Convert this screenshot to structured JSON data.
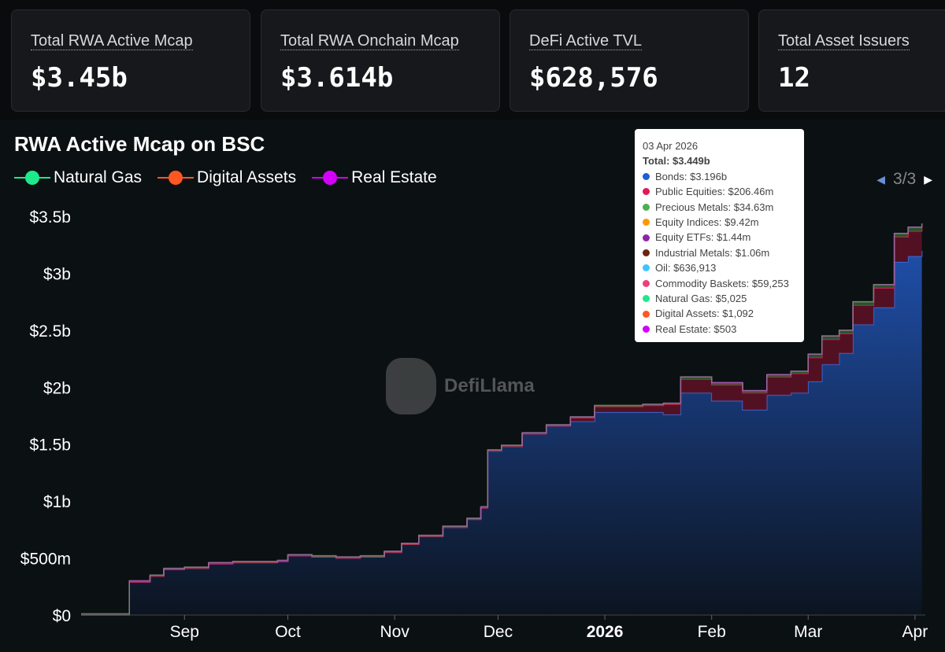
{
  "cards": [
    {
      "label": "Total RWA Active Mcap",
      "value": "$3.45b"
    },
    {
      "label": "Total RWA Onchain Mcap",
      "value": "$3.614b"
    },
    {
      "label": "DeFi Active TVL",
      "value": "$628,576"
    },
    {
      "label": "Total Asset Issuers",
      "value": "12"
    }
  ],
  "watermark": "DefiLlama",
  "legend_pager": "3/3",
  "tooltip": {
    "date": "03 Apr 2026",
    "total": "Total: $3.449b",
    "items": [
      {
        "text": "Bonds: $3.196b",
        "color": "#1f5fd1"
      },
      {
        "text": "Public Equities: $206.46m",
        "color": "#e0195b"
      },
      {
        "text": "Precious Metals: $34.63m",
        "color": "#4caf50"
      },
      {
        "text": "Equity Indices: $9.42m",
        "color": "#ff9800"
      },
      {
        "text": "Equity ETFs: $1.44m",
        "color": "#8e24aa"
      },
      {
        "text": "Industrial Metals: $1.06m",
        "color": "#6d2414"
      },
      {
        "text": "Oil: $636,913",
        "color": "#40c4ff"
      },
      {
        "text": "Commodity Baskets: $59,253",
        "color": "#ec407a"
      },
      {
        "text": "Natural Gas: $5,025",
        "color": "#1de98b"
      },
      {
        "text": "Digital Assets: $1,092",
        "color": "#ff5722"
      },
      {
        "text": "Real Estate: $503",
        "color": "#d500f9"
      }
    ]
  },
  "chart_data": {
    "type": "area",
    "title": "RWA Active Mcap on BSC",
    "legend": [
      {
        "name": "Natural Gas",
        "color": "#1de98b"
      },
      {
        "name": "Digital Assets",
        "color": "#ff5722"
      },
      {
        "name": "Real Estate",
        "color": "#d500f9"
      }
    ],
    "legend_placement": "top-left",
    "y_ticks": [
      "$0",
      "$500m",
      "$1b",
      "$1.5b",
      "$2b",
      "$2.5b",
      "$3b",
      "$3.5b"
    ],
    "ylim": [
      0,
      3500000000.0
    ],
    "x_ticks": [
      {
        "label": "Sep",
        "date": "2025-09-01"
      },
      {
        "label": "Oct",
        "date": "2025-10-01"
      },
      {
        "label": "Nov",
        "date": "2025-11-01"
      },
      {
        "label": "Dec",
        "date": "2025-12-01"
      },
      {
        "label": "2026",
        "date": "2026-01-01",
        "bold": true
      },
      {
        "label": "Feb",
        "date": "2026-02-01"
      },
      {
        "label": "Mar",
        "date": "2026-03-01"
      },
      {
        "label": "Apr",
        "date": "2026-04-01"
      }
    ],
    "xlim": [
      "2025-08-02",
      "2026-04-04"
    ],
    "grid": false,
    "x": [
      "2025-08-02",
      "2025-08-15",
      "2025-08-16",
      "2025-08-22",
      "2025-08-26",
      "2025-09-01",
      "2025-09-08",
      "2025-09-15",
      "2025-09-28",
      "2025-10-01",
      "2025-10-08",
      "2025-10-15",
      "2025-10-22",
      "2025-10-29",
      "2025-11-03",
      "2025-11-08",
      "2025-11-15",
      "2025-11-22",
      "2025-11-26",
      "2025-11-28",
      "2025-12-02",
      "2025-12-08",
      "2025-12-15",
      "2025-12-22",
      "2025-12-29",
      "2026-01-05",
      "2026-01-12",
      "2026-01-18",
      "2026-01-23",
      "2026-02-01",
      "2026-02-10",
      "2026-02-17",
      "2026-02-24",
      "2026-03-01",
      "2026-03-05",
      "2026-03-10",
      "2026-03-14",
      "2026-03-20",
      "2026-03-26",
      "2026-03-30",
      "2026-04-03"
    ],
    "series": [
      {
        "name": "Bonds",
        "color": "#1f5fd1",
        "values": [
          0,
          0,
          290000000.0,
          340000000.0,
          400000000.0,
          410000000.0,
          450000000.0,
          460000000.0,
          470000000.0,
          520000000.0,
          510000000.0,
          500000000.0,
          510000000.0,
          550000000.0,
          620000000.0,
          690000000.0,
          770000000.0,
          840000000.0,
          940000000.0,
          1440000000.0,
          1480000000.0,
          1590000000.0,
          1660000000.0,
          1700000000.0,
          1780000000.0,
          1780000000.0,
          1780000000.0,
          1760000000.0,
          1950000000.0,
          1880000000.0,
          1800000000.0,
          1930000000.0,
          1950000000.0,
          2050000000.0,
          2200000000.0,
          2300000000.0,
          2550000000.0,
          2700000000.0,
          3100000000.0,
          3150000000.0,
          3196000000.0
        ]
      },
      {
        "name": "Public Equities",
        "color": "#e0195b",
        "values": [
          0,
          0,
          0,
          0,
          0,
          0,
          0,
          0,
          0,
          0,
          0,
          0,
          0,
          0,
          0,
          0,
          0,
          0,
          0,
          0,
          0,
          0,
          0,
          30000000.0,
          50000000.0,
          50000000.0,
          60000000.0,
          90000000.0,
          120000000.0,
          140000000.0,
          150000000.0,
          160000000.0,
          170000000.0,
          210000000.0,
          220000000.0,
          170000000.0,
          170000000.0,
          170000000.0,
          220000000.0,
          220000000.0,
          206000000.0
        ]
      },
      {
        "name": "Precious Metals",
        "color": "#4caf50",
        "values": [
          10000000.0,
          10000000.0,
          10000000.0,
          10000000.0,
          10000000.0,
          10000000.0,
          10000000.0,
          10000000.0,
          10000000.0,
          10000000.0,
          10000000.0,
          10000000.0,
          10000000.0,
          10000000.0,
          10000000.0,
          10000000.0,
          10000000.0,
          10000000.0,
          10000000.0,
          10000000.0,
          10000000.0,
          10000000.0,
          10000000.0,
          10000000.0,
          10000000.0,
          10000000.0,
          10000000.0,
          10000000.0,
          20000000.0,
          20000000.0,
          20000000.0,
          20000000.0,
          20000000.0,
          30000000.0,
          30000000.0,
          30000000.0,
          30000000.0,
          30000000.0,
          30000000.0,
          35000000.0,
          35000000.0
        ]
      }
    ]
  }
}
